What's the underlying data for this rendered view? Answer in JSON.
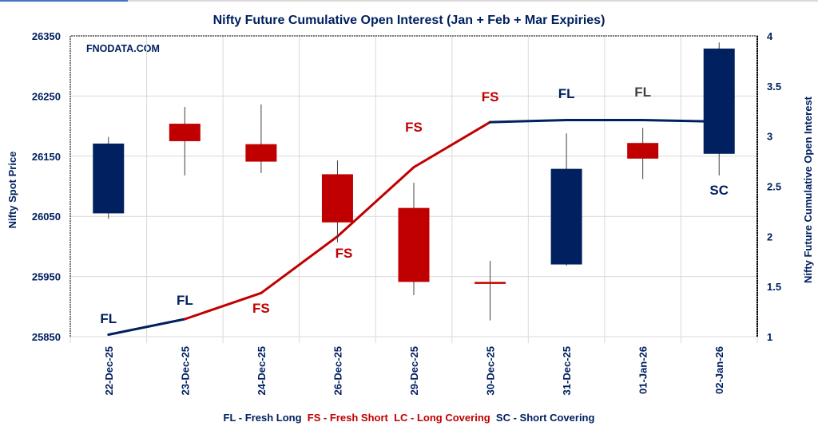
{
  "chart_data": {
    "type": "candlestick+line",
    "title": "Nifty Future Cumulative Open Interest (Jan  + Feb + Mar Expiries)",
    "watermark": "FNODATA.COM",
    "ylabel_left": "Nifty Spot Price",
    "ylabel_right": "Nifty Future Cumulative Open Interest",
    "ylim_left": [
      25850,
      26350
    ],
    "yticks_left": [
      25850,
      25950,
      26050,
      26150,
      26250,
      26350
    ],
    "ylim_right": [
      1,
      4
    ],
    "yticks_right": [
      "1",
      "1.5",
      "2",
      "2.5",
      "3",
      "3.5",
      "4"
    ],
    "grid": true,
    "categories": [
      "22-Dec-25",
      "23-Dec-25",
      "24-Dec-25",
      "26-Dec-25",
      "29-Dec-25",
      "30-Dec-25",
      "31-Dec-25",
      "01-Jan-26",
      "02-Jan-26"
    ],
    "candles": [
      {
        "open": 26055,
        "high": 26182,
        "low": 26046,
        "close": 26171
      },
      {
        "open": 26204,
        "high": 26232,
        "low": 26118,
        "close": 26175
      },
      {
        "open": 26170,
        "high": 26236,
        "low": 26122,
        "close": 26141
      },
      {
        "open": 26120,
        "high": 26143,
        "low": 26007,
        "close": 26040
      },
      {
        "open": 26064,
        "high": 26106,
        "low": 25919,
        "close": 25941
      },
      {
        "open": 25941,
        "high": 25976,
        "low": 25877,
        "close": 25940
      },
      {
        "open": 25970,
        "high": 26188,
        "low": 25968,
        "close": 26129
      },
      {
        "open": 26172,
        "high": 26197,
        "low": 26112,
        "close": 26146
      },
      {
        "open": 26154,
        "high": 26339,
        "low": 26118,
        "close": 26329
      }
    ],
    "open_interest": [
      1.02,
      1.175,
      1.435,
      2.0,
      2.69,
      3.14,
      3.16,
      3.16,
      3.145
    ],
    "oi_segment_colors": [
      "#002060",
      "#c00000",
      "#c00000",
      "#c00000",
      "#c00000",
      "#002060",
      "#002060",
      "#002060"
    ],
    "annotations": [
      {
        "text": "FL",
        "color": "#002060"
      },
      {
        "text": "FL",
        "color": "#002060"
      },
      {
        "text": "FS",
        "color": "#c00000"
      },
      {
        "text": "FS",
        "color": "#c00000"
      },
      {
        "text": "FS",
        "color": "#c00000"
      },
      {
        "text": "FS",
        "color": "#c00000"
      },
      {
        "text": "FL",
        "color": "#002060"
      },
      {
        "text": "FL",
        "color": "#404040"
      },
      {
        "text": "SC",
        "color": "#002060"
      }
    ],
    "legend": [
      {
        "text": "FL - Fresh Long",
        "color": "#002060"
      },
      {
        "text": "FS - Fresh Short",
        "color": "#c00000"
      },
      {
        "text": "LC - Long Covering",
        "color": "#c00000"
      },
      {
        "text": "SC - Short Covering",
        "color": "#002060"
      }
    ],
    "colors": {
      "up": "#002060",
      "down": "#c00000",
      "axis_text": "#002060",
      "grid": "#d9d9d9"
    }
  }
}
